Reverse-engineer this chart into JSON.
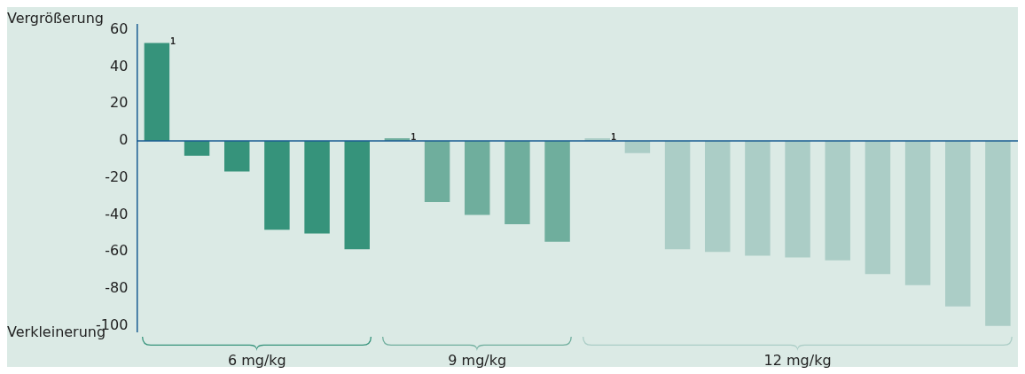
{
  "chart_data": {
    "type": "bar",
    "categories": [
      null,
      null,
      null,
      null,
      null,
      null,
      null,
      null,
      null,
      null,
      null,
      null,
      null,
      null,
      null,
      null,
      null,
      null,
      null,
      null,
      null,
      null
    ],
    "values": [
      53,
      -8,
      -16.5,
      -48,
      -50,
      -58.5,
      1.5,
      -33,
      -40,
      -45,
      -54.5,
      1.5,
      -6.5,
      -58.5,
      -60,
      -62,
      -63,
      -64.5,
      -72,
      -78,
      -89.5,
      -100
    ],
    "colors": [
      "#36937b",
      "#36937b",
      "#36937b",
      "#36937b",
      "#36937b",
      "#36937b",
      "#6fae9d",
      "#6fae9d",
      "#6fae9d",
      "#6fae9d",
      "#6fae9d",
      "#abcdc6",
      "#abcdc6",
      "#abcdc6",
      "#abcdc6",
      "#abcdc6",
      "#abcdc6",
      "#abcdc6",
      "#abcdc6",
      "#abcdc6",
      "#abcdc6",
      "#abcdc6"
    ],
    "ref_lines": [
      {
        "axis": "y",
        "value": 0,
        "color": "#1a5c92"
      }
    ],
    "ylim": [
      -103,
      63
    ],
    "yticks": [
      -100,
      -80,
      -60,
      -40,
      -20,
      0,
      20,
      40,
      60
    ],
    "grid": false,
    "legend": false,
    "annotations": [
      "Vergrößerung",
      "Verkleinerung",
      "6 mg/kg",
      "9 mg/kg",
      "12 mg/kg",
      {
        "text": "1",
        "y": 53
      },
      {
        "text": "1",
        "y": 1.5
      },
      {
        "text": "1",
        "y": 1.5
      }
    ]
  }
}
